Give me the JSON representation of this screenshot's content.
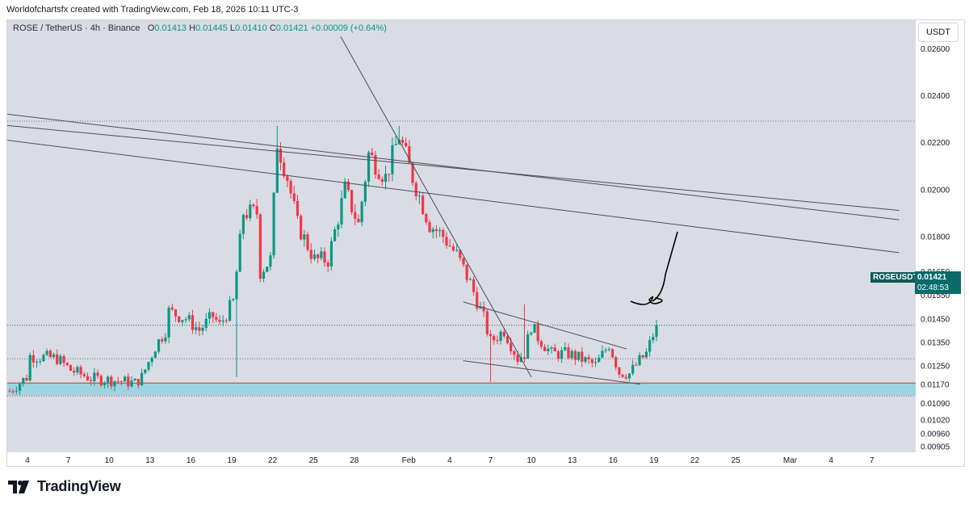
{
  "header": {
    "note": "Worldofchartsfx created with TradingView.com, Feb 18, 2026 10:11 UTC-3"
  },
  "legend": {
    "symbol": "ROSE / TetherUS · 4h · Binance",
    "open_label": "O",
    "open": "0.01413",
    "high_label": "H",
    "high": "0.01445",
    "low_label": "L",
    "low": "0.01410",
    "close_label": "C",
    "close": "0.01421",
    "change": "+0.00009 (+0.64%)"
  },
  "currency_button": "USDT",
  "price_tag": {
    "symbol": "ROSEUSDT",
    "price": "0.01421",
    "countdown": "02:48:53"
  },
  "brand": {
    "name": "TradingView"
  },
  "colors": {
    "up": "#089981",
    "down": "#f23645",
    "zone": "#9fd3df",
    "zone_border": "#c0392b",
    "price_box": "#0b6a6a"
  },
  "chart_data": {
    "type": "candlestick",
    "symbol": "ROSEUSDT",
    "interval": "4h",
    "ylim": [
      0.0088,
      0.0272
    ],
    "y_ticks": [
      "0.02600",
      "0.02400",
      "0.02200",
      "0.02000",
      "0.01800",
      "0.01650",
      "0.01550",
      "0.01450",
      "0.01350",
      "0.01250",
      "0.01170",
      "0.01090",
      "0.01020",
      "0.00960",
      "0.00905"
    ],
    "x_ticks": [
      "4",
      "7",
      "10",
      "13",
      "16",
      "19",
      "22",
      "25",
      "28",
      "Feb",
      "4",
      "7",
      "10",
      "13",
      "16",
      "19",
      "22",
      "25",
      "Mar",
      "4",
      "7"
    ],
    "last_price": 0.01421,
    "candles_anchor_path": [
      [
        0,
        0.0114
      ],
      [
        5,
        0.012
      ],
      [
        6,
        0.0129
      ],
      [
        14,
        0.0128
      ],
      [
        18,
        0.0123
      ],
      [
        24,
        0.01195
      ],
      [
        32,
        0.01185
      ],
      [
        37,
        0.01175
      ],
      [
        39,
        0.012
      ],
      [
        43,
        0.0133
      ],
      [
        46,
        0.014
      ],
      [
        47,
        0.0148
      ],
      [
        52,
        0.0145
      ],
      [
        56,
        0.014
      ],
      [
        60,
        0.0146
      ],
      [
        62,
        0.0142
      ],
      [
        66,
        0.0152
      ],
      [
        69,
        0.019
      ],
      [
        73,
        0.019
      ],
      [
        74,
        0.0165
      ],
      [
        77,
        0.017
      ],
      [
        79,
        0.022
      ],
      [
        82,
        0.0205
      ],
      [
        85,
        0.0185
      ],
      [
        90,
        0.017
      ],
      [
        94,
        0.017
      ],
      [
        99,
        0.02
      ],
      [
        103,
        0.0185
      ],
      [
        106,
        0.0215
      ],
      [
        111,
        0.0205
      ],
      [
        115,
        0.0223
      ],
      [
        119,
        0.0205
      ],
      [
        124,
        0.0185
      ],
      [
        128,
        0.018
      ],
      [
        132,
        0.0172
      ],
      [
        136,
        0.016
      ],
      [
        140,
        0.0145
      ],
      [
        142,
        0.0135
      ],
      [
        146,
        0.014
      ],
      [
        150,
        0.0128
      ],
      [
        152,
        0.013
      ],
      [
        154,
        0.0142
      ],
      [
        156,
        0.0137
      ],
      [
        160,
        0.013
      ],
      [
        165,
        0.013
      ],
      [
        170,
        0.0127
      ],
      [
        173,
        0.0125
      ],
      [
        177,
        0.0134
      ],
      [
        180,
        0.0122
      ],
      [
        183,
        0.01215
      ],
      [
        186,
        0.0127
      ],
      [
        188,
        0.013
      ],
      [
        191,
        0.01421
      ]
    ],
    "anomaly_wicks": [
      {
        "index": 67,
        "low": 0.012
      },
      {
        "index": 142,
        "low": 0.0118
      },
      {
        "index": 152,
        "high": 0.0151
      },
      {
        "index": 79,
        "high": 0.0227
      },
      {
        "index": 115,
        "high": 0.0227
      }
    ],
    "horizontal_levels": [
      {
        "price": 0.0229,
        "style": "dotted"
      },
      {
        "price": 0.01278,
        "style": "dotted"
      },
      {
        "price": 0.0112,
        "style": "dotted"
      }
    ],
    "support_zone": {
      "top": 0.01175,
      "bottom": 0.01122
    },
    "trendlines": [
      {
        "p1": [
          "2026-01-01",
          0.0222
        ],
        "p2": [
          "2026-03-09",
          0.0173
        ]
      },
      {
        "p1": [
          "2026-01-01",
          0.0233
        ],
        "p2": [
          "2026-03-09",
          0.0187
        ]
      },
      {
        "p1": [
          "2026-01-01",
          0.0228
        ],
        "p2": [
          "2026-03-09",
          0.0191
        ]
      },
      {
        "p1": [
          "2026-01-27",
          0.0265
        ],
        "p2": [
          "2026-02-10",
          0.012
        ]
      },
      {
        "p1": [
          "2026-02-05",
          0.0152
        ],
        "p2": [
          "2026-02-17",
          0.0132
        ]
      },
      {
        "p1": [
          "2026-02-05",
          0.0127
        ],
        "p2": [
          "2026-02-18",
          0.0117
        ]
      }
    ]
  }
}
